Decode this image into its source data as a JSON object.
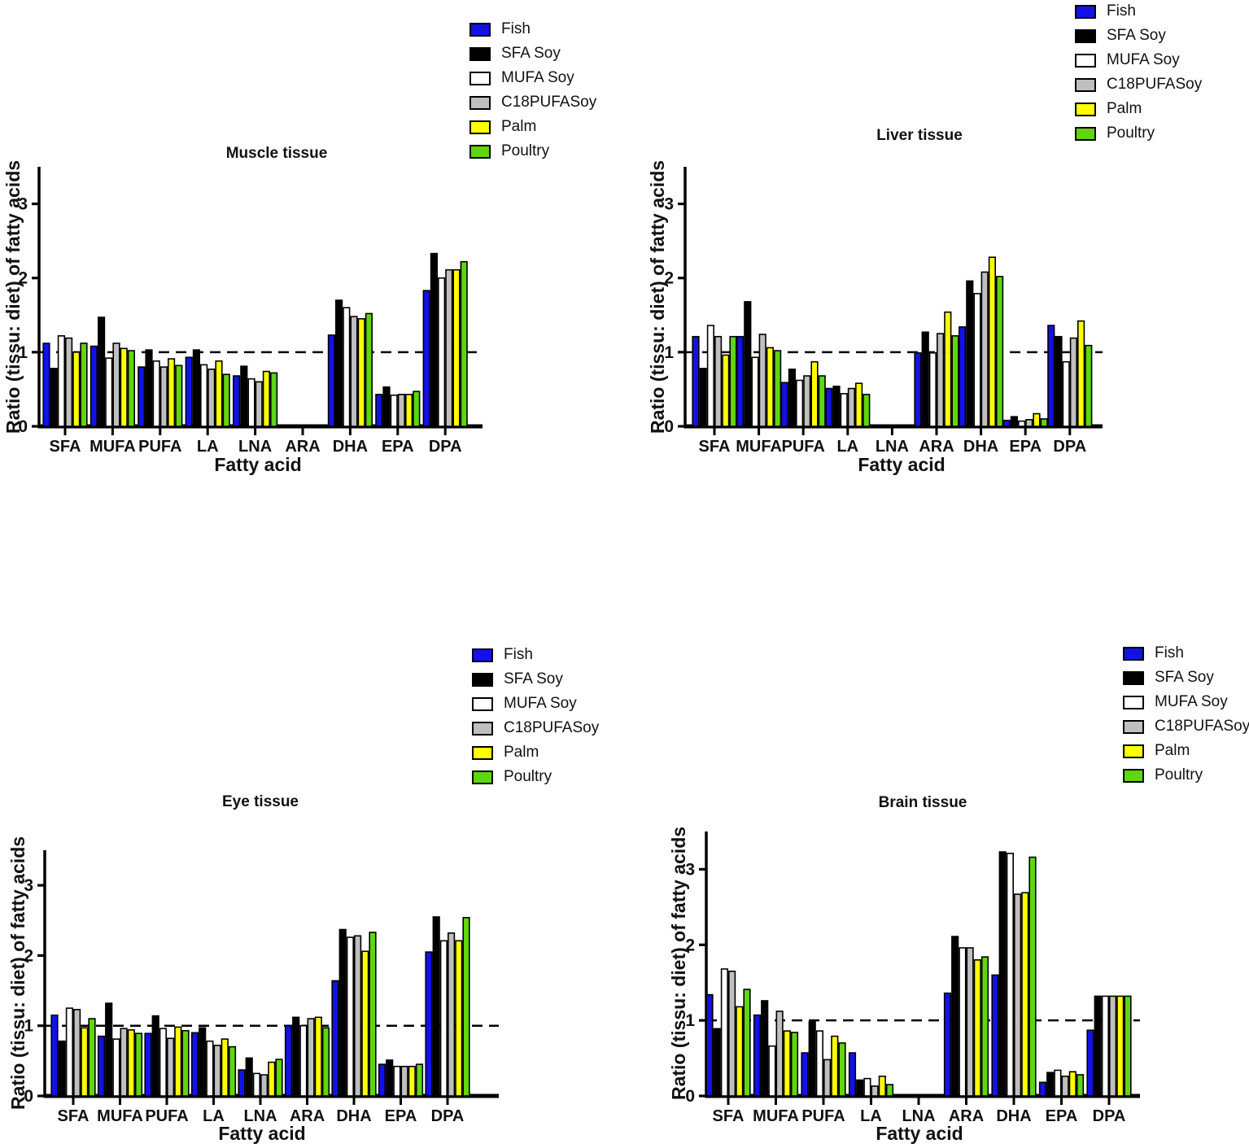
{
  "figure": {
    "background": "#ffffff"
  },
  "colors": {
    "fish": "#1212e6",
    "sfa_soy": "#000000",
    "mufa_soy": "#ffffff",
    "c18pufasoy": "#bfbfbf",
    "palm": "#ffff00",
    "poultry": "#5fd60d",
    "axis": "#000000",
    "reference_line": "#000000"
  },
  "legend": {
    "items": [
      {
        "label": "Fish",
        "color_key": "fish"
      },
      {
        "label": "SFA Soy",
        "color_key": "sfa_soy"
      },
      {
        "label": "MUFA Soy",
        "color_key": "mufa_soy"
      },
      {
        "label": "C18PUFASoy",
        "color_key": "c18pufasoy"
      },
      {
        "label": "Palm",
        "color_key": "palm"
      },
      {
        "label": "Poultry",
        "color_key": "poultry"
      }
    ]
  },
  "axis": {
    "ylabel": "Ratio (tissu: diet) of fatty acids",
    "xlabel": "Fatty acid",
    "yticks": [
      0,
      1,
      2,
      3
    ],
    "ymax": 3.5,
    "reference_line": 1
  },
  "chart_data": [
    {
      "type": "bar",
      "id": "muscle",
      "title": "Muscle tissue",
      "categories": [
        "SFA",
        "MUFA",
        "PUFA",
        "LA",
        "LNA",
        "ARA",
        "DHA",
        "EPA",
        "DPA"
      ],
      "xlabel": "Fatty acid",
      "ylabel": "Ratio (tissu: diet) of fatty acids",
      "ylim": [
        0,
        3.5
      ],
      "ref_line": 1,
      "grid": false,
      "legend_position": "top-right",
      "series": [
        {
          "name": "Fish",
          "color_key": "fish",
          "values": [
            1.12,
            1.08,
            0.8,
            0.93,
            0.68,
            0,
            1.23,
            0.43,
            1.83
          ]
        },
        {
          "name": "SFA Soy",
          "color_key": "sfa_soy",
          "values": [
            0.78,
            1.47,
            1.03,
            1.03,
            0.81,
            0,
            1.7,
            0.53,
            2.33
          ]
        },
        {
          "name": "MUFA Soy",
          "color_key": "mufa_soy",
          "values": [
            1.22,
            0.92,
            0.88,
            0.83,
            0.64,
            0,
            1.6,
            0.42,
            2.0
          ]
        },
        {
          "name": "C18PUFASoy",
          "color_key": "c18pufasoy",
          "values": [
            1.19,
            1.12,
            0.8,
            0.77,
            0.6,
            0,
            1.48,
            0.43,
            2.11
          ]
        },
        {
          "name": "Palm",
          "color_key": "palm",
          "values": [
            1.0,
            1.05,
            0.91,
            0.88,
            0.74,
            0,
            1.45,
            0.43,
            2.11
          ]
        },
        {
          "name": "Poultry",
          "color_key": "poultry",
          "values": [
            1.12,
            1.02,
            0.82,
            0.7,
            0.72,
            0,
            1.52,
            0.47,
            2.22
          ]
        }
      ]
    },
    {
      "type": "bar",
      "id": "liver",
      "title": "Liver tissue",
      "categories": [
        "SFA",
        "MUFA",
        "PUFA",
        "LA",
        "LNA",
        "ARA",
        "DHA",
        "EPA",
        "DPA"
      ],
      "xlabel": "Fatty acid",
      "ylabel": "Ratio (tissu: diet) of fatty acids",
      "ylim": [
        0,
        3.5
      ],
      "ref_line": 1,
      "grid": false,
      "legend_position": "top-right",
      "series": [
        {
          "name": "Fish",
          "color_key": "fish",
          "values": [
            1.21,
            1.21,
            0.59,
            0.51,
            0,
            0.99,
            1.34,
            0.08,
            1.36
          ]
        },
        {
          "name": "SFA Soy",
          "color_key": "sfa_soy",
          "values": [
            0.78,
            1.68,
            0.77,
            0.54,
            0,
            1.27,
            1.96,
            0.13,
            1.21
          ]
        },
        {
          "name": "MUFA Soy",
          "color_key": "mufa_soy",
          "values": [
            1.36,
            0.93,
            0.62,
            0.44,
            0,
            0.99,
            1.79,
            0.07,
            0.87
          ]
        },
        {
          "name": "C18PUFASoy",
          "color_key": "c18pufasoy",
          "values": [
            1.21,
            1.24,
            0.68,
            0.51,
            0,
            1.25,
            2.08,
            0.09,
            1.19
          ]
        },
        {
          "name": "Palm",
          "color_key": "palm",
          "values": [
            0.96,
            1.06,
            0.87,
            0.58,
            0,
            1.54,
            2.28,
            0.17,
            1.42
          ]
        },
        {
          "name": "Poultry",
          "color_key": "poultry",
          "values": [
            1.21,
            1.02,
            0.68,
            0.43,
            0,
            1.22,
            2.02,
            0.1,
            1.09
          ]
        }
      ]
    },
    {
      "type": "bar",
      "id": "eye",
      "title": "Eye tissue",
      "categories": [
        "SFA",
        "MUFA",
        "PUFA",
        "LA",
        "LNA",
        "ARA",
        "DHA",
        "EPA",
        "DPA"
      ],
      "xlabel": "Fatty acid",
      "ylabel": "Ratio (tissu: diet) of fatty acids",
      "ylim": [
        0,
        3.5
      ],
      "ref_line": 1,
      "grid": false,
      "legend_position": "top-right",
      "series": [
        {
          "name": "Fish",
          "color_key": "fish",
          "values": [
            1.15,
            0.85,
            0.89,
            0.9,
            0.37,
            1.0,
            1.64,
            0.45,
            2.05
          ]
        },
        {
          "name": "SFA Soy",
          "color_key": "sfa_soy",
          "values": [
            0.78,
            1.32,
            1.14,
            0.97,
            0.54,
            1.12,
            2.37,
            0.51,
            2.55
          ]
        },
        {
          "name": "MUFA Soy",
          "color_key": "mufa_soy",
          "values": [
            1.25,
            0.81,
            0.96,
            0.78,
            0.32,
            1.0,
            2.26,
            0.42,
            2.21
          ]
        },
        {
          "name": "C18PUFASoy",
          "color_key": "c18pufasoy",
          "values": [
            1.23,
            0.96,
            0.82,
            0.72,
            0.3,
            1.1,
            2.28,
            0.42,
            2.32
          ]
        },
        {
          "name": "Palm",
          "color_key": "palm",
          "values": [
            0.97,
            0.94,
            0.98,
            0.81,
            0.48,
            1.12,
            2.06,
            0.42,
            2.21
          ]
        },
        {
          "name": "Poultry",
          "color_key": "poultry",
          "values": [
            1.1,
            0.89,
            0.93,
            0.7,
            0.52,
            0.97,
            2.33,
            0.45,
            2.54
          ]
        }
      ]
    },
    {
      "type": "bar",
      "id": "brain",
      "title": "Brain tissue",
      "categories": [
        "SFA",
        "MUFA",
        "PUFA",
        "LA",
        "LNA",
        "ARA",
        "DHA",
        "EPA",
        "DPA"
      ],
      "xlabel": "Fatty acid",
      "ylabel": "Ratio (tissu: diet) of fatty acids",
      "ylim": [
        0,
        3.5
      ],
      "ref_line": 1,
      "grid": false,
      "legend_position": "top-right",
      "series": [
        {
          "name": "Fish",
          "color_key": "fish",
          "values": [
            1.34,
            1.07,
            0.57,
            0.57,
            0,
            1.36,
            1.6,
            0.18,
            0.87
          ]
        },
        {
          "name": "SFA Soy",
          "color_key": "sfa_soy",
          "values": [
            0.89,
            1.26,
            0.98,
            0.21,
            0,
            2.11,
            3.23,
            0.31,
            1.32
          ]
        },
        {
          "name": "MUFA Soy",
          "color_key": "mufa_soy",
          "values": [
            1.68,
            0.66,
            0.86,
            0.23,
            0,
            1.96,
            3.21,
            0.34,
            1.32
          ]
        },
        {
          "name": "C18PUFASoy",
          "color_key": "c18pufasoy",
          "values": [
            1.65,
            1.12,
            0.48,
            0.13,
            0,
            1.96,
            2.67,
            0.26,
            1.32
          ]
        },
        {
          "name": "Palm",
          "color_key": "palm",
          "values": [
            1.18,
            0.86,
            0.79,
            0.26,
            0,
            1.8,
            2.69,
            0.32,
            1.32
          ]
        },
        {
          "name": "Poultry",
          "color_key": "poultry",
          "values": [
            1.41,
            0.84,
            0.7,
            0.15,
            0,
            1.84,
            3.16,
            0.28,
            1.32
          ]
        }
      ]
    }
  ]
}
